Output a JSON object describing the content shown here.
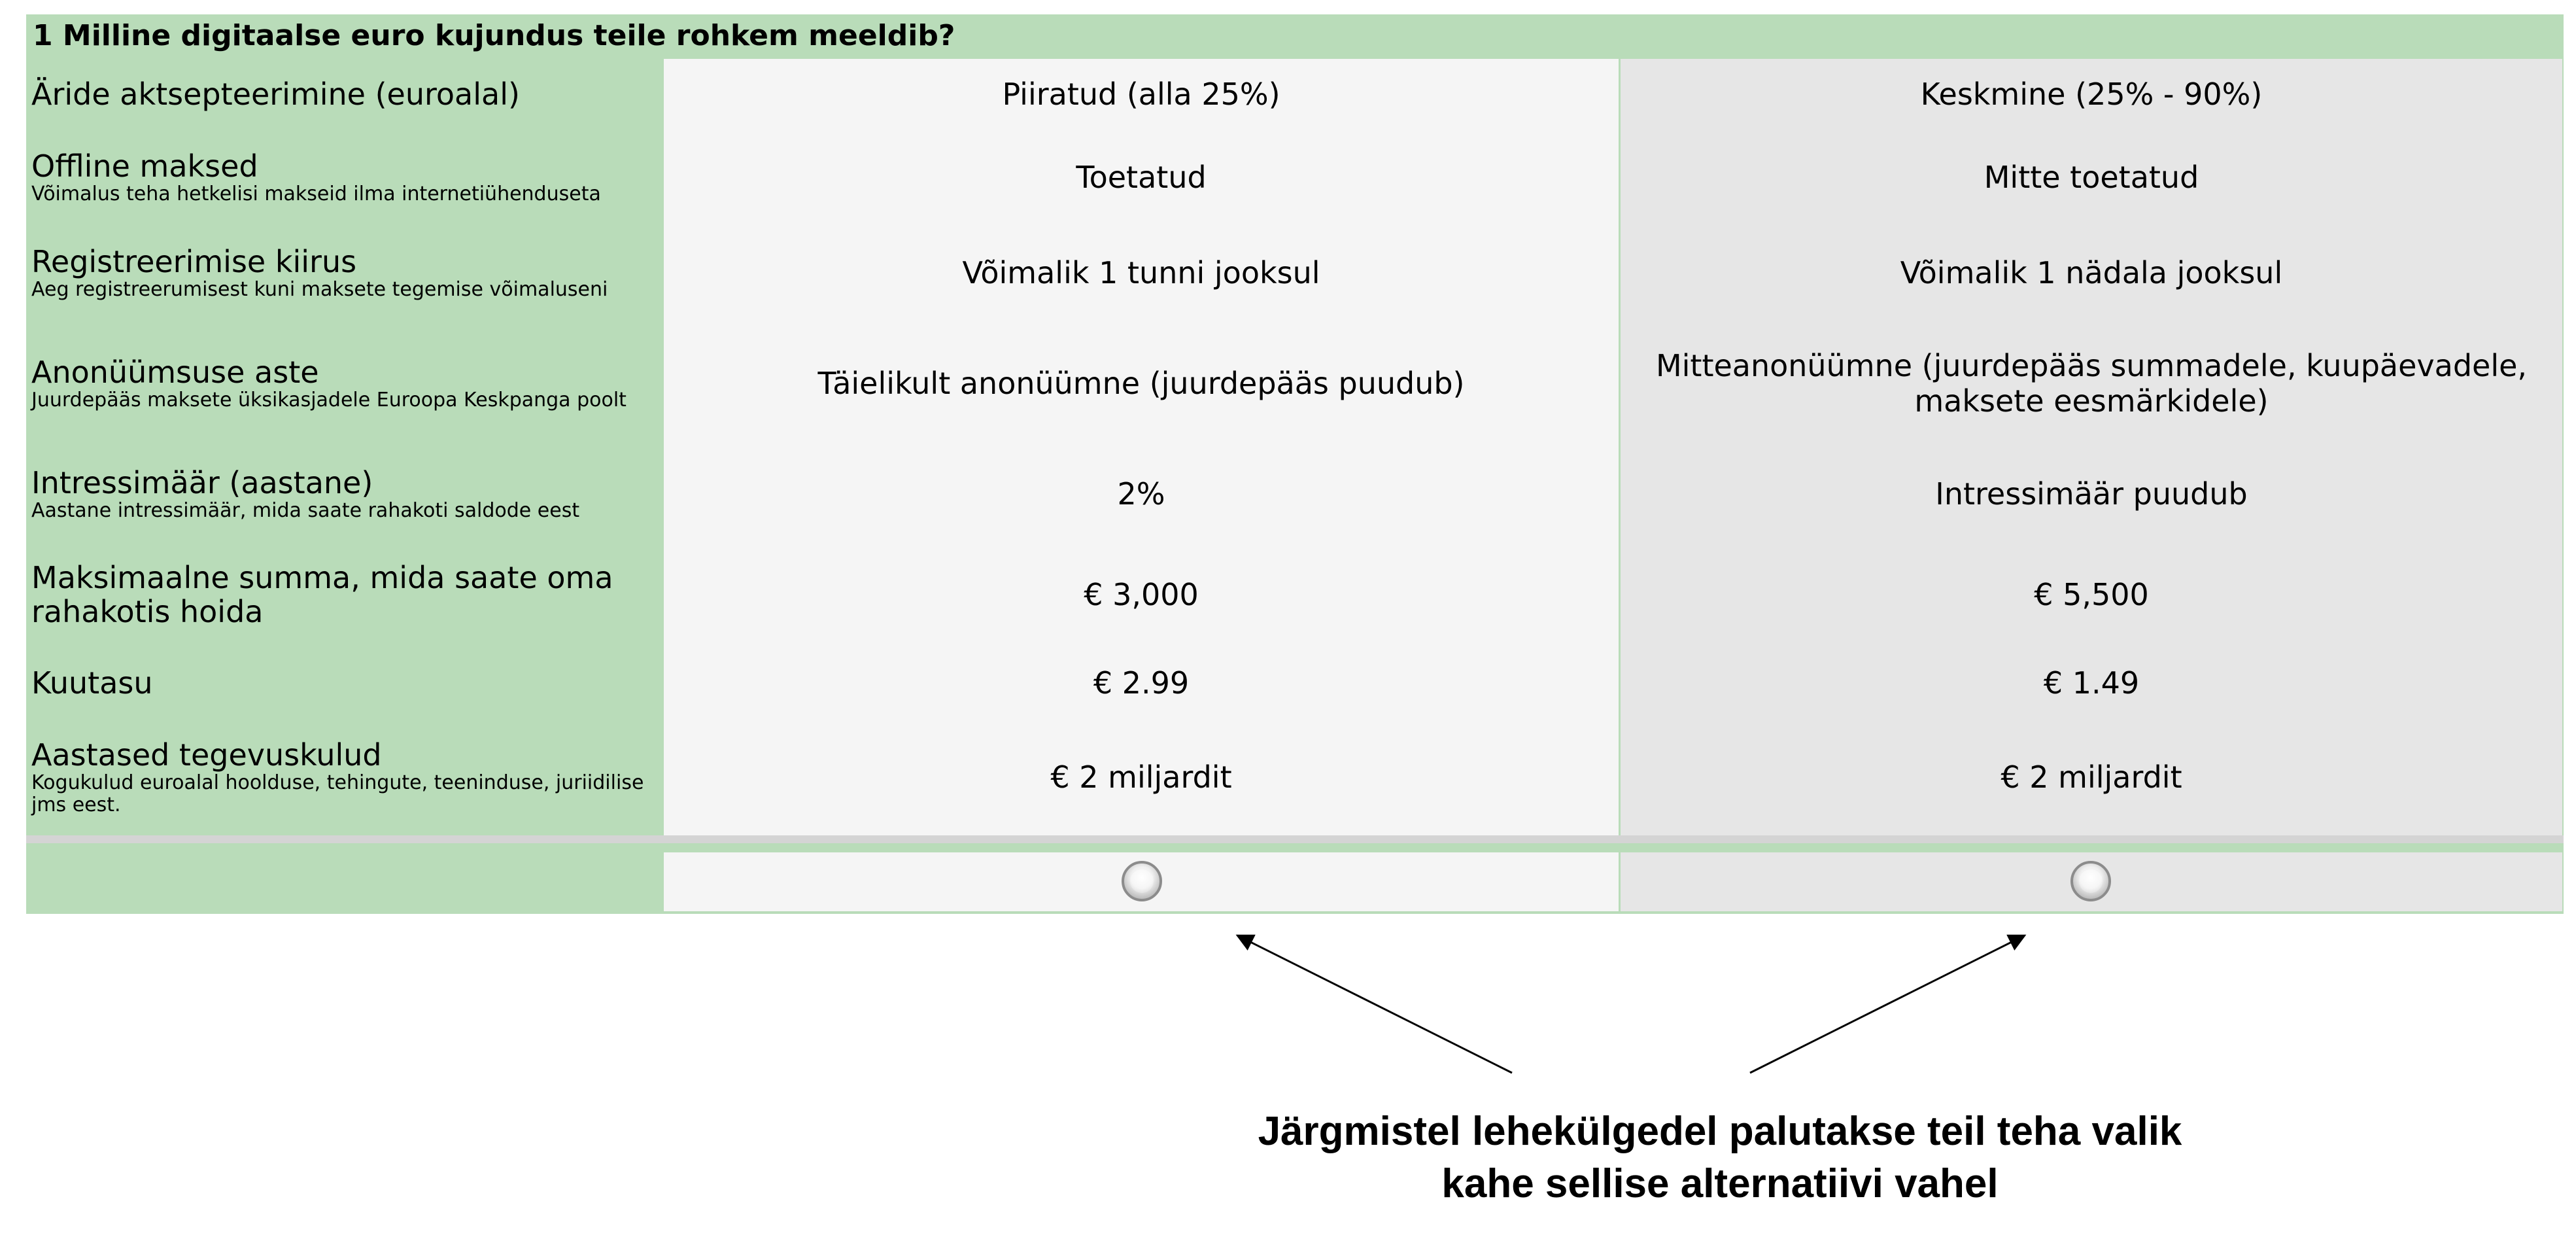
{
  "question": {
    "title": "1 Milline digitaalse euro kujundus teile rohkem meeldib?"
  },
  "attributes": [
    {
      "name": "Äride aktsepteerimine (euroalal)",
      "desc": "",
      "option_a": "Piiratud (alla 25%)",
      "option_b": "Keskmine (25% - 90%)"
    },
    {
      "name": "Offline maksed",
      "desc": "Võimalus teha hetkelisi makseid ilma internetiühenduseta",
      "option_a": "Toetatud",
      "option_b": "Mitte toetatud"
    },
    {
      "name": "Registreerimise kiirus",
      "desc": "Aeg registreerumisest kuni maksete tegemise võimaluseni",
      "option_a": "Võimalik 1 tunni jooksul",
      "option_b": "Võimalik 1 nädala jooksul"
    },
    {
      "name": "Anonüümsuse aste",
      "desc": "Juurdepääs maksete üksikasjadele Euroopa Keskpanga poolt",
      "option_a": "Täielikult anonüümne (juurdepääs puudub)",
      "option_b": "Mitteanonüümne (juurdepääs summadele, kuupäevadele, maksete eesmärkidele)"
    },
    {
      "name": "Intressimäär (aastane)",
      "desc": "Aastane intressimäär, mida saate rahakoti saldode eest",
      "option_a": "2%",
      "option_b": "Intressimäär puudub"
    },
    {
      "name": "Maksimaalne summa, mida saate oma rahakotis hoida",
      "desc": "",
      "option_a": "€ 3,000",
      "option_b": "€ 5,500"
    },
    {
      "name": "Kuutasu",
      "desc": "",
      "option_a": "€ 2.99",
      "option_b": "€ 1.49"
    },
    {
      "name": "Aastased tegevuskulud",
      "desc": "Kogukulud euroalal hoolduse, tehingute, teeninduse, juriidilise jms eest.",
      "option_a": "€ 2 miljardit",
      "option_b": "€ 2 miljardit"
    }
  ],
  "choice": {
    "option_a_selected": false,
    "option_b_selected": false
  },
  "caption": {
    "line1": "Järgmistel lehekülgedel palutakse teil teha valik",
    "line2": "kahe sellise alternatiivi vahel"
  },
  "colors": {
    "attribute_column": "#b9dcb9",
    "option_a_column": "#f5f5f5",
    "option_b_column": "#e6e6e6"
  }
}
